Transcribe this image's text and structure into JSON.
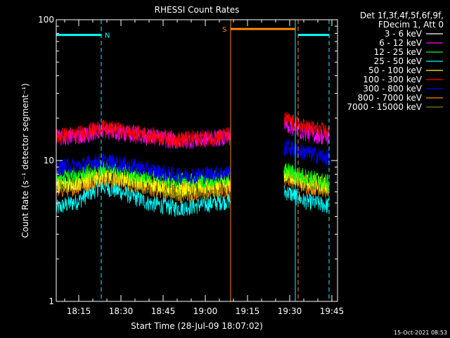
{
  "chart_data": {
    "type": "line",
    "title": "RHESSI Count Rates",
    "xlabel": "Start Time (28-Jul-09 18:07:02)",
    "ylabel": "Count Rate (s⁻¹ detector segment⁻¹)",
    "y_scale": "log",
    "ylim": [
      1,
      100
    ],
    "xlim": [
      "18:07",
      "19:47"
    ],
    "x_tick_labels": [
      "18:15",
      "18:30",
      "18:45",
      "19:00",
      "19:15",
      "19:30",
      "19:45"
    ],
    "y_tick_labels": [
      "1",
      "10",
      "100"
    ],
    "grid": false,
    "legend_position": "top-right",
    "legend_header": [
      "Det 1f,3f,4f,5f,6f,9f,",
      "FDecim 1, Att 0"
    ],
    "x": [
      "18:07",
      "18:15",
      "18:23",
      "18:30",
      "18:40",
      "18:50",
      "19:00",
      "19:08",
      "19:29",
      "19:35",
      "19:44"
    ],
    "series": [
      {
        "name": "3 - 6 keV",
        "color": "#000000",
        "values": [
          9.5,
          9.8,
          10.5,
          10.0,
          9.2,
          8.5,
          8.8,
          9.0,
          12.0,
          11.0,
          10.0
        ]
      },
      {
        "name": "6 - 12 keV",
        "color": "#ff00ff",
        "values": [
          14.5,
          15.0,
          16.5,
          15.8,
          14.8,
          13.8,
          14.2,
          14.8,
          18.0,
          16.0,
          14.5
        ]
      },
      {
        "name": "12 - 25 keV",
        "color": "#00ff00",
        "values": [
          7.5,
          8.0,
          9.0,
          8.6,
          7.8,
          7.2,
          7.4,
          7.6,
          8.5,
          7.8,
          7.0
        ]
      },
      {
        "name": "25 - 50 keV",
        "color": "#00ffff",
        "values": [
          4.6,
          5.2,
          6.6,
          6.0,
          5.0,
          4.6,
          4.9,
          5.2,
          6.0,
          5.2,
          4.8
        ]
      },
      {
        "name": "50 - 100 keV",
        "color": "#ffff00",
        "values": [
          6.8,
          7.0,
          8.0,
          7.6,
          7.0,
          6.4,
          6.6,
          6.8,
          8.0,
          7.2,
          6.6
        ]
      },
      {
        "name": "100 - 300 keV",
        "color": "#ff0000",
        "values": [
          15.0,
          15.5,
          17.2,
          16.4,
          15.2,
          14.2,
          14.6,
          15.2,
          19.5,
          17.5,
          16.0
        ]
      },
      {
        "name": "300 - 800 keV",
        "color": "#0000ff",
        "values": [
          9.0,
          9.2,
          10.0,
          9.5,
          8.6,
          7.8,
          8.0,
          8.2,
          12.5,
          11.5,
          10.5
        ]
      },
      {
        "name": "800 - 7000 keV",
        "color": "#ff8800",
        "values": [
          6.2,
          6.6,
          7.6,
          7.2,
          6.4,
          5.8,
          6.0,
          6.3,
          7.6,
          6.8,
          6.2
        ]
      },
      {
        "name": "7000 - 15000 keV",
        "color": "#808000",
        "values": [
          6.6,
          6.9,
          7.9,
          7.4,
          6.6,
          6.0,
          6.2,
          6.5,
          7.9,
          7.0,
          6.4
        ]
      }
    ],
    "data_gap": [
      "19:09",
      "19:28"
    ],
    "flags": [
      {
        "label": "N",
        "color": "#00ffff",
        "level": 78,
        "segments": [
          [
            "18:07",
            "18:23"
          ],
          [
            "19:33",
            "19:44"
          ]
        ],
        "marks_solid": [
          "18:07",
          "19:32"
        ],
        "marks_dashed": [
          "18:23",
          "19:44"
        ]
      },
      {
        "label": "S",
        "color": "#ff8800",
        "level": 86,
        "segments": [
          [
            "19:09",
            "19:32"
          ]
        ],
        "marks_solid": [
          "19:09"
        ],
        "marks_dashed": [
          "19:33"
        ]
      }
    ],
    "timestamp": "15-Oct-2021 08:53"
  }
}
